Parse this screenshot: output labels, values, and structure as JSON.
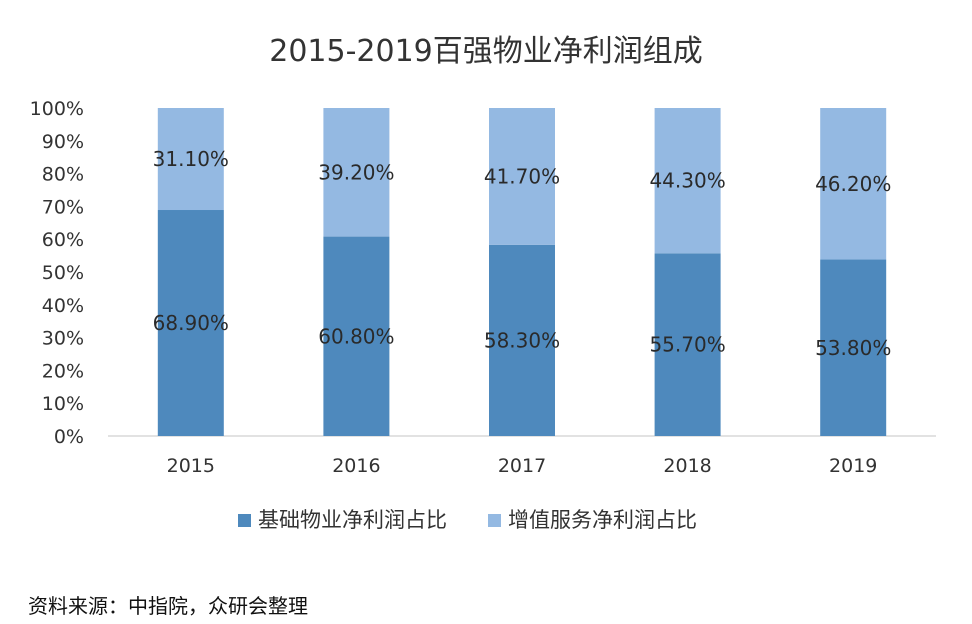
{
  "chart_data": {
    "type": "bar",
    "stacked": true,
    "title": "2015-2019百强物业净利润组成",
    "categories": [
      "2015",
      "2016",
      "2017",
      "2018",
      "2019"
    ],
    "series": [
      {
        "name": "基础物业净利润占比",
        "values": [
          68.9,
          60.8,
          58.3,
          55.7,
          53.8
        ],
        "labels": [
          "68.90%",
          "60.80%",
          "58.30%",
          "55.70%",
          "53.80%"
        ],
        "color": "#4e89bd"
      },
      {
        "name": "增值服务净利润占比",
        "values": [
          31.1,
          39.2,
          41.7,
          44.3,
          46.2
        ],
        "labels": [
          "31.10%",
          "39.20%",
          "41.70%",
          "44.30%",
          "46.20%"
        ],
        "color": "#94b9e2"
      }
    ],
    "yticks": [
      "0%",
      "10%",
      "20%",
      "30%",
      "40%",
      "50%",
      "60%",
      "70%",
      "80%",
      "90%",
      "100%"
    ],
    "ylim": [
      0,
      100
    ],
    "legend_position": "bottom",
    "grid": false
  },
  "source_note": "资料来源：中指院，众研会整理"
}
